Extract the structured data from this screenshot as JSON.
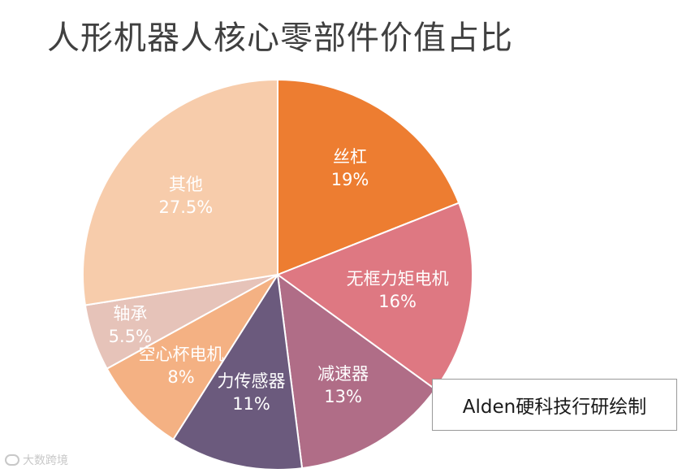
{
  "title": "人形机器人核心零部件价值占比",
  "credit": "Alden硬科技行研绘制",
  "watermark": "大数跨境",
  "chart_data": {
    "type": "pie",
    "title": "人形机器人核心零部件价值占比",
    "start": "12 o'clock",
    "direction": "clockwise",
    "slices": [
      {
        "label": "丝杠",
        "value": 19,
        "display": "19%",
        "color": "#ED7D31"
      },
      {
        "label": "无框力矩电机",
        "value": 16,
        "display": "16%",
        "color": "#DE7882"
      },
      {
        "label": "减速器",
        "value": 13,
        "display": "13%",
        "color": "#B06D87"
      },
      {
        "label": "力传感器",
        "value": 11,
        "display": "11%",
        "color": "#6B5A7D"
      },
      {
        "label": "空心杯电机",
        "value": 8,
        "display": "8%",
        "color": "#F4B183"
      },
      {
        "label": "轴承",
        "value": 5.5,
        "display": "5.5%",
        "color": "#E6C3B9"
      },
      {
        "label": "其他",
        "value": 27.5,
        "display": "27.5%",
        "color": "#F7CCAB"
      }
    ]
  }
}
